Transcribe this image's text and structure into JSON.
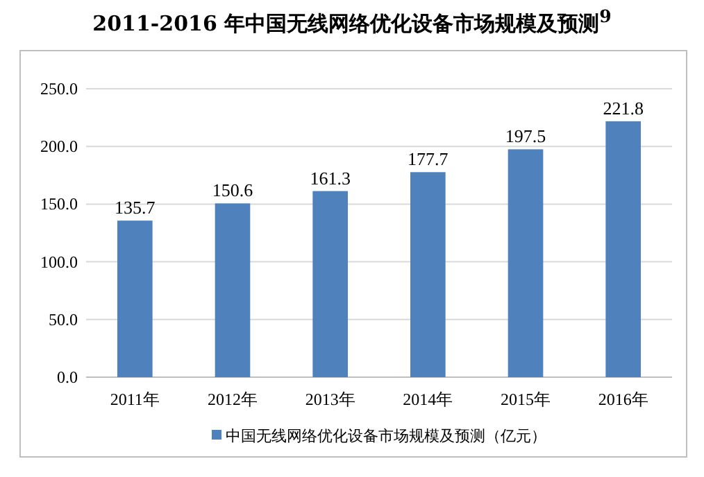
{
  "chart_data": {
    "type": "bar",
    "title": "2011-2016 年中国无线网络优化设备市场规模及预测$^{9}$",
    "categories": [
      "2011年",
      "2012年",
      "2013年",
      "2014年",
      "2015年",
      "2016年"
    ],
    "series": [
      {
        "name": "中国无线网络优化设备市场规模及预测（亿元）",
        "color": "#4f81bd",
        "values": [
          135.7,
          150.6,
          161.3,
          177.7,
          197.5,
          221.8
        ]
      }
    ],
    "ylim": [
      0,
      250
    ],
    "yticks": [
      {
        "value": 0,
        "label": "0.0"
      },
      {
        "value": 50,
        "label": "50.0"
      },
      {
        "value": 100,
        "label": "100.0"
      },
      {
        "value": 150,
        "label": "150.0"
      },
      {
        "value": 200,
        "label": "200.0"
      },
      {
        "value": 250,
        "label": "250.0"
      }
    ],
    "grid": "y",
    "data_labels": true,
    "legend": "bottom"
  }
}
